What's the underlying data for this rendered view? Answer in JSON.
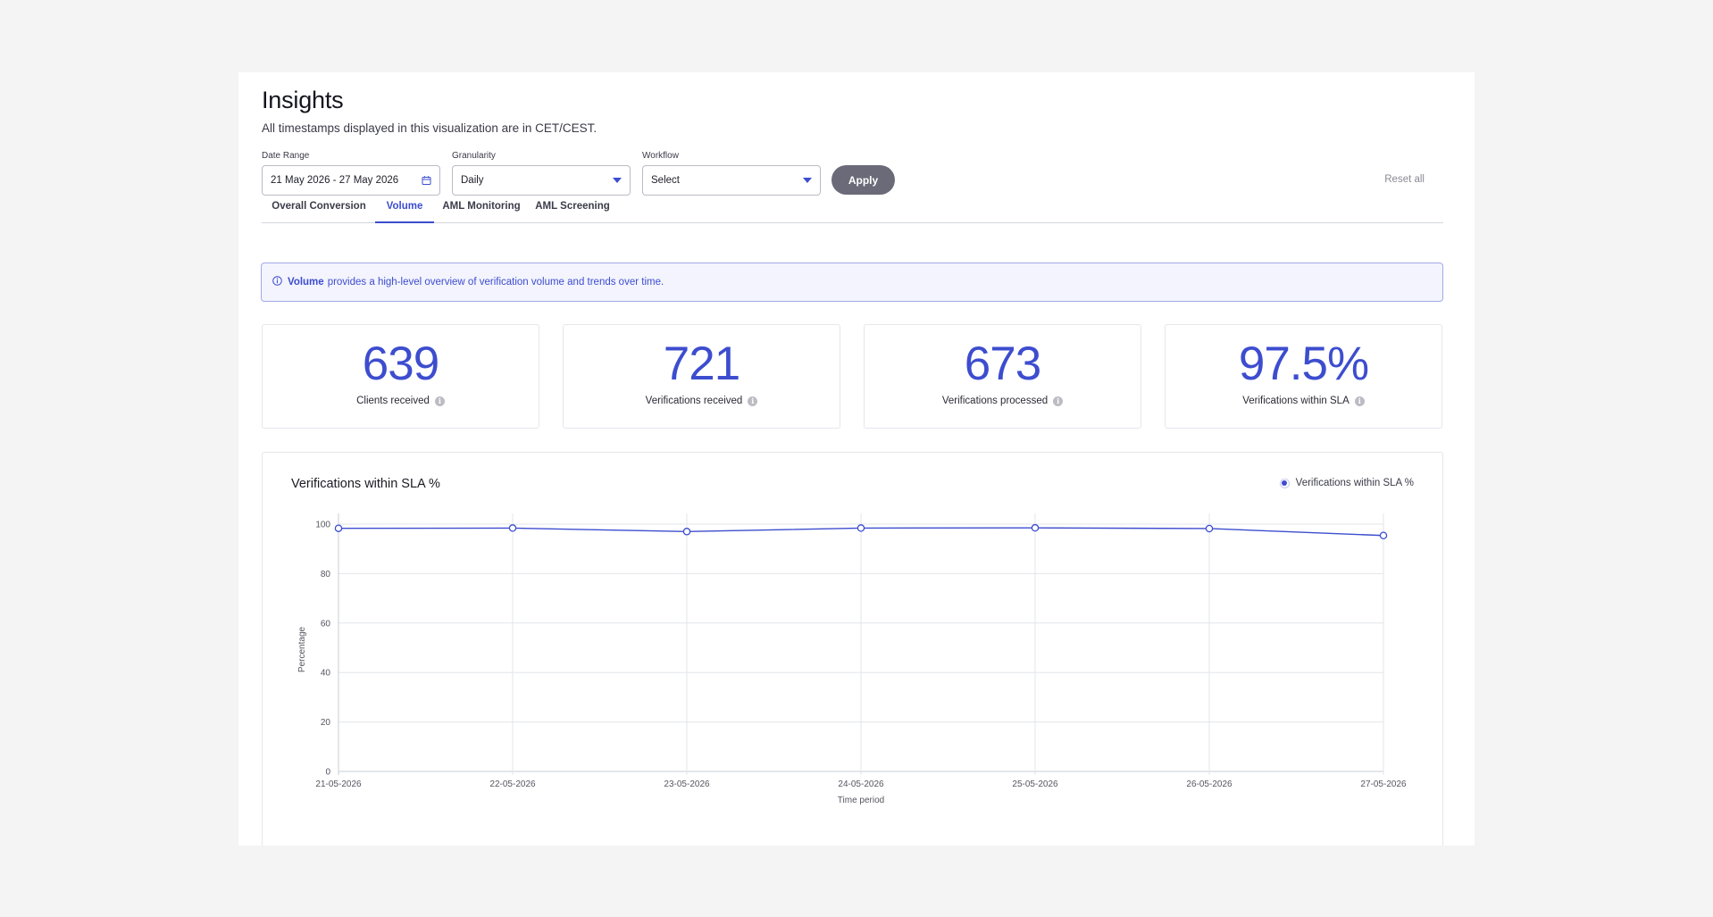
{
  "header": {
    "title": "Insights",
    "subtitle": "All timestamps displayed in this visualization are in CET/CEST."
  },
  "filters": {
    "date_range": {
      "label": "Date Range",
      "value": "21 May 2026 - 27 May 2026",
      "icon": "calendar-icon"
    },
    "granularity": {
      "label": "Granularity",
      "value": "Daily",
      "icon": "caret-down-icon"
    },
    "workflow": {
      "label": "Workflow",
      "value": "Select",
      "icon": "caret-down-icon"
    },
    "apply_label": "Apply",
    "reset_label": "Reset all"
  },
  "tabs": [
    {
      "label": "Overall Conversion",
      "active": false
    },
    {
      "label": "Volume",
      "active": true
    },
    {
      "label": "AML Monitoring",
      "active": false
    },
    {
      "label": "AML Screening",
      "active": false
    }
  ],
  "banner": {
    "icon": "info-circle-icon",
    "bold": "Volume",
    "text": "provides a high-level overview of verification volume and trends over time."
  },
  "stats": [
    {
      "value": "639",
      "label": "Clients received"
    },
    {
      "value": "721",
      "label": "Verifications received"
    },
    {
      "value": "673",
      "label": "Verifications processed"
    },
    {
      "value": "97.5%",
      "label": "Verifications within SLA"
    }
  ],
  "colors": {
    "accent": "#3d4dcf",
    "apply_button": "#6a6a78",
    "banner_bg": "#f3f4fd",
    "banner_border": "#a3a9e8"
  },
  "chart_data": {
    "type": "line",
    "title": "Verifications within SLA %",
    "xlabel": "Time period",
    "ylabel": "Percentage",
    "categories": [
      "21-05-2026",
      "22-05-2026",
      "23-05-2026",
      "24-05-2026",
      "25-05-2026",
      "26-05-2026",
      "27-05-2026"
    ],
    "series": [
      {
        "name": "Verifications within SLA %",
        "values": [
          98.3,
          98.4,
          97.0,
          98.4,
          98.5,
          98.2,
          95.4
        ]
      }
    ],
    "ylim": [
      0,
      100
    ],
    "yticks": [
      0,
      20,
      40,
      60,
      80,
      100
    ],
    "grid": true,
    "legend": "top-right",
    "color": "#3d4dcf"
  }
}
